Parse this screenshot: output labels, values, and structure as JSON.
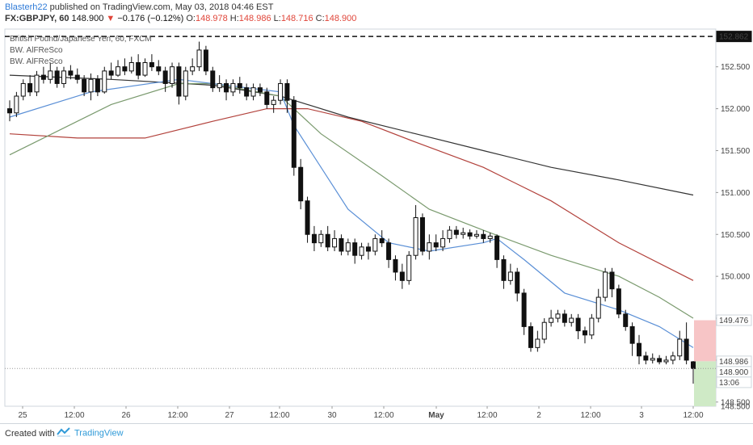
{
  "header": {
    "user": "Blasterh22",
    "published": " published on TradingView.com, May 03, 2018 04:46 EST",
    "symbol": "FX:GBPJPY, 60",
    "last": "148.900",
    "arrow": "▼",
    "change": "−0.176 (−0.12%)",
    "o_label": "O:",
    "o_val": "148.978",
    "h_label": "H:",
    "h_val": "148.986",
    "l_label": "L:",
    "l_val": "148.716",
    "c_label": "C:",
    "c_val": "148.900"
  },
  "legend": {
    "line1": "British Pound/Japanese Yen, 60, FXCM",
    "line2": "BW. AlFReSco",
    "line3": "BW. AlFReSco"
  },
  "footer": {
    "created": "Created with",
    "brand": "TradingView"
  },
  "colors": {
    "blue_ma": "#5a8fd6",
    "green_ma": "#7a9a6e",
    "red_ma": "#b2413b",
    "black_ma": "#333333",
    "stop_box": "#f7c5c6",
    "target_box": "#cfeac6",
    "candle": "#111111"
  },
  "chart_data": {
    "type": "candlestick",
    "y_range": [
      148.45,
      152.95
    ],
    "y_ticks": [
      "152.500",
      "152.000",
      "151.500",
      "151.000",
      "150.500",
      "150.000",
      "149.500",
      "149.000",
      "148.500"
    ],
    "x_labels": [
      "25",
      "12:00",
      "26",
      "12:00",
      "27",
      "12:00",
      "30",
      "12:00",
      "May",
      "12:00",
      "2",
      "12:00",
      "3",
      "12:00"
    ],
    "price_labels": [
      {
        "label": "152.862",
        "value": 152.862,
        "bg": "#111111",
        "fg": "#ffffff"
      },
      {
        "label": "149.476",
        "value": 149.476,
        "bg": "#ffffff",
        "fg": "#e0463a"
      },
      {
        "label": "148.986",
        "value": 148.986,
        "bg": "#ffffff",
        "fg": "#111111"
      },
      {
        "label": "148.900",
        "value": 148.9,
        "bg": "#ffffff",
        "fg": "#111111"
      },
      {
        "label": "13:06",
        "value": 148.8,
        "bg": "#ffffff",
        "fg": "#111111"
      }
    ],
    "dashed_level": 152.862,
    "current_price": 148.9,
    "risk_box": {
      "top": 149.476,
      "bottom": 148.986
    },
    "reward_box": {
      "top": 148.986,
      "bottom": 148.45
    },
    "candles": [
      [
        152.0,
        151.95,
        152.1,
        151.85
      ],
      [
        151.95,
        152.15,
        152.2,
        151.9
      ],
      [
        152.15,
        152.3,
        152.35,
        152.1
      ],
      [
        152.3,
        152.2,
        152.4,
        152.15
      ],
      [
        152.2,
        152.4,
        152.45,
        152.15
      ],
      [
        152.4,
        152.35,
        152.5,
        152.3
      ],
      [
        152.35,
        152.45,
        152.55,
        152.3
      ],
      [
        152.45,
        152.3,
        152.5,
        152.25
      ],
      [
        152.3,
        152.45,
        152.5,
        152.25
      ],
      [
        152.45,
        152.4,
        152.52,
        152.35
      ],
      [
        152.4,
        152.35,
        152.48,
        152.3
      ],
      [
        152.35,
        152.2,
        152.4,
        152.15
      ],
      [
        152.2,
        152.35,
        152.42,
        152.1
      ],
      [
        152.35,
        152.2,
        152.4,
        152.15
      ],
      [
        152.2,
        152.45,
        152.5,
        152.18
      ],
      [
        152.45,
        152.4,
        152.55,
        152.35
      ],
      [
        152.4,
        152.5,
        152.58,
        152.38
      ],
      [
        152.5,
        152.45,
        152.6,
        152.4
      ],
      [
        152.45,
        152.55,
        152.62,
        152.42
      ],
      [
        152.55,
        152.4,
        152.65,
        152.35
      ],
      [
        152.4,
        152.55,
        152.6,
        152.38
      ],
      [
        152.55,
        152.5,
        152.65,
        152.45
      ],
      [
        152.5,
        152.45,
        152.58,
        152.4
      ],
      [
        152.45,
        152.3,
        152.5,
        152.2
      ],
      [
        152.3,
        152.5,
        152.55,
        152.25
      ],
      [
        152.5,
        152.15,
        152.55,
        152.05
      ],
      [
        152.15,
        152.45,
        152.5,
        152.1
      ],
      [
        152.45,
        152.5,
        152.6,
        152.4
      ],
      [
        152.5,
        152.7,
        152.8,
        152.45
      ],
      [
        152.7,
        152.45,
        152.75,
        152.4
      ],
      [
        152.45,
        152.25,
        152.5,
        152.2
      ],
      [
        152.25,
        152.3,
        152.4,
        152.2
      ],
      [
        152.3,
        152.2,
        152.35,
        152.1
      ],
      [
        152.2,
        152.3,
        152.35,
        152.15
      ],
      [
        152.3,
        152.25,
        152.38,
        152.18
      ],
      [
        152.25,
        152.15,
        152.3,
        152.1
      ],
      [
        152.15,
        152.25,
        152.3,
        152.1
      ],
      [
        152.25,
        152.2,
        152.3,
        152.15
      ],
      [
        152.2,
        152.05,
        152.25,
        152.0
      ],
      [
        152.05,
        152.1,
        152.15,
        151.95
      ],
      [
        152.1,
        152.3,
        152.35,
        152.05
      ],
      [
        152.3,
        152.1,
        152.35,
        151.95
      ],
      [
        152.1,
        151.3,
        152.15,
        151.2
      ],
      [
        151.3,
        150.9,
        151.4,
        150.8
      ],
      [
        150.9,
        150.5,
        150.95,
        150.4
      ],
      [
        150.5,
        150.4,
        150.6,
        150.3
      ],
      [
        150.4,
        150.5,
        150.55,
        150.35
      ],
      [
        150.5,
        150.35,
        150.6,
        150.3
      ],
      [
        150.35,
        150.45,
        150.55,
        150.3
      ],
      [
        150.45,
        150.3,
        150.5,
        150.25
      ],
      [
        150.3,
        150.4,
        150.45,
        150.25
      ],
      [
        150.4,
        150.25,
        150.45,
        150.15
      ],
      [
        150.25,
        150.35,
        150.4,
        150.2
      ],
      [
        150.35,
        150.3,
        150.4,
        150.2
      ],
      [
        150.3,
        150.45,
        150.5,
        150.25
      ],
      [
        150.45,
        150.4,
        150.55,
        150.35
      ],
      [
        150.4,
        150.2,
        150.45,
        150.1
      ],
      [
        150.2,
        150.05,
        150.25,
        149.95
      ],
      [
        150.05,
        149.95,
        150.15,
        149.85
      ],
      [
        149.95,
        150.25,
        150.3,
        149.9
      ],
      [
        150.25,
        150.7,
        150.85,
        150.2
      ],
      [
        150.7,
        150.3,
        150.75,
        150.25
      ],
      [
        150.3,
        150.4,
        150.5,
        150.2
      ],
      [
        150.4,
        150.35,
        150.5,
        150.3
      ],
      [
        150.35,
        150.45,
        150.55,
        150.3
      ],
      [
        150.45,
        150.55,
        150.6,
        150.4
      ],
      [
        150.55,
        150.5,
        150.6,
        150.45
      ],
      [
        150.5,
        150.52,
        150.58,
        150.45
      ],
      [
        150.52,
        150.48,
        150.56,
        150.44
      ],
      [
        150.48,
        150.5,
        150.55,
        150.45
      ],
      [
        150.5,
        150.45,
        150.55,
        150.4
      ],
      [
        150.45,
        150.48,
        150.52,
        150.4
      ],
      [
        150.48,
        150.2,
        150.5,
        150.1
      ],
      [
        150.2,
        149.95,
        150.25,
        149.85
      ],
      [
        149.95,
        150.05,
        150.15,
        149.9
      ],
      [
        150.05,
        149.8,
        150.1,
        149.7
      ],
      [
        149.8,
        149.4,
        149.85,
        149.3
      ],
      [
        149.4,
        149.15,
        149.45,
        149.1
      ],
      [
        149.15,
        149.25,
        149.35,
        149.1
      ],
      [
        149.25,
        149.45,
        149.5,
        149.2
      ],
      [
        149.45,
        149.5,
        149.6,
        149.4
      ],
      [
        149.5,
        149.55,
        149.6,
        149.45
      ],
      [
        149.55,
        149.45,
        149.6,
        149.4
      ],
      [
        149.45,
        149.5,
        149.55,
        149.4
      ],
      [
        149.5,
        149.35,
        149.55,
        149.25
      ],
      [
        149.35,
        149.3,
        149.4,
        149.2
      ],
      [
        149.3,
        149.5,
        149.55,
        149.25
      ],
      [
        149.5,
        149.75,
        149.85,
        149.45
      ],
      [
        149.75,
        150.05,
        150.1,
        149.7
      ],
      [
        150.05,
        149.85,
        150.1,
        149.75
      ],
      [
        149.85,
        149.55,
        149.9,
        149.5
      ],
      [
        149.55,
        149.4,
        149.6,
        149.35
      ],
      [
        149.4,
        149.2,
        149.45,
        149.05
      ],
      [
        149.2,
        149.05,
        149.3,
        148.95
      ],
      [
        149.05,
        149.0,
        149.1,
        148.95
      ],
      [
        149.0,
        149.02,
        149.08,
        148.96
      ],
      [
        149.02,
        148.98,
        149.06,
        148.95
      ],
      [
        148.98,
        149.0,
        149.05,
        148.95
      ],
      [
        149.0,
        149.05,
        149.1,
        148.95
      ],
      [
        149.05,
        149.25,
        149.35,
        149.0
      ],
      [
        149.25,
        149.0,
        149.45,
        148.95
      ],
      [
        148.98,
        148.9,
        148.99,
        148.72
      ]
    ],
    "ma_blue": [
      [
        0,
        151.9
      ],
      [
        12,
        152.2
      ],
      [
        25,
        152.35
      ],
      [
        40,
        152.2
      ],
      [
        42,
        151.8
      ],
      [
        50,
        150.8
      ],
      [
        56,
        150.4
      ],
      [
        62,
        150.3
      ],
      [
        70,
        150.4
      ],
      [
        72,
        150.45
      ],
      [
        76,
        150.2
      ],
      [
        82,
        149.8
      ],
      [
        90,
        149.6
      ],
      [
        96,
        149.4
      ],
      [
        101,
        149.15
      ]
    ],
    "ma_green": [
      [
        0,
        151.45
      ],
      [
        15,
        152.05
      ],
      [
        25,
        152.3
      ],
      [
        30,
        152.3
      ],
      [
        40,
        152.15
      ],
      [
        46,
        151.7
      ],
      [
        55,
        151.2
      ],
      [
        62,
        150.8
      ],
      [
        70,
        150.55
      ],
      [
        80,
        150.25
      ],
      [
        90,
        150.0
      ],
      [
        96,
        149.75
      ],
      [
        101,
        149.5
      ]
    ],
    "ma_red": [
      [
        0,
        151.7
      ],
      [
        10,
        151.65
      ],
      [
        20,
        151.65
      ],
      [
        30,
        151.85
      ],
      [
        38,
        152.0
      ],
      [
        44,
        152.0
      ],
      [
        52,
        151.85
      ],
      [
        60,
        151.6
      ],
      [
        70,
        151.3
      ],
      [
        80,
        150.9
      ],
      [
        90,
        150.4
      ],
      [
        101,
        149.95
      ]
    ],
    "ma_black": [
      [
        0,
        152.4
      ],
      [
        15,
        152.35
      ],
      [
        30,
        152.28
      ],
      [
        40,
        152.15
      ],
      [
        50,
        151.9
      ],
      [
        60,
        151.7
      ],
      [
        70,
        151.5
      ],
      [
        80,
        151.3
      ],
      [
        90,
        151.15
      ],
      [
        101,
        150.97
      ]
    ]
  }
}
